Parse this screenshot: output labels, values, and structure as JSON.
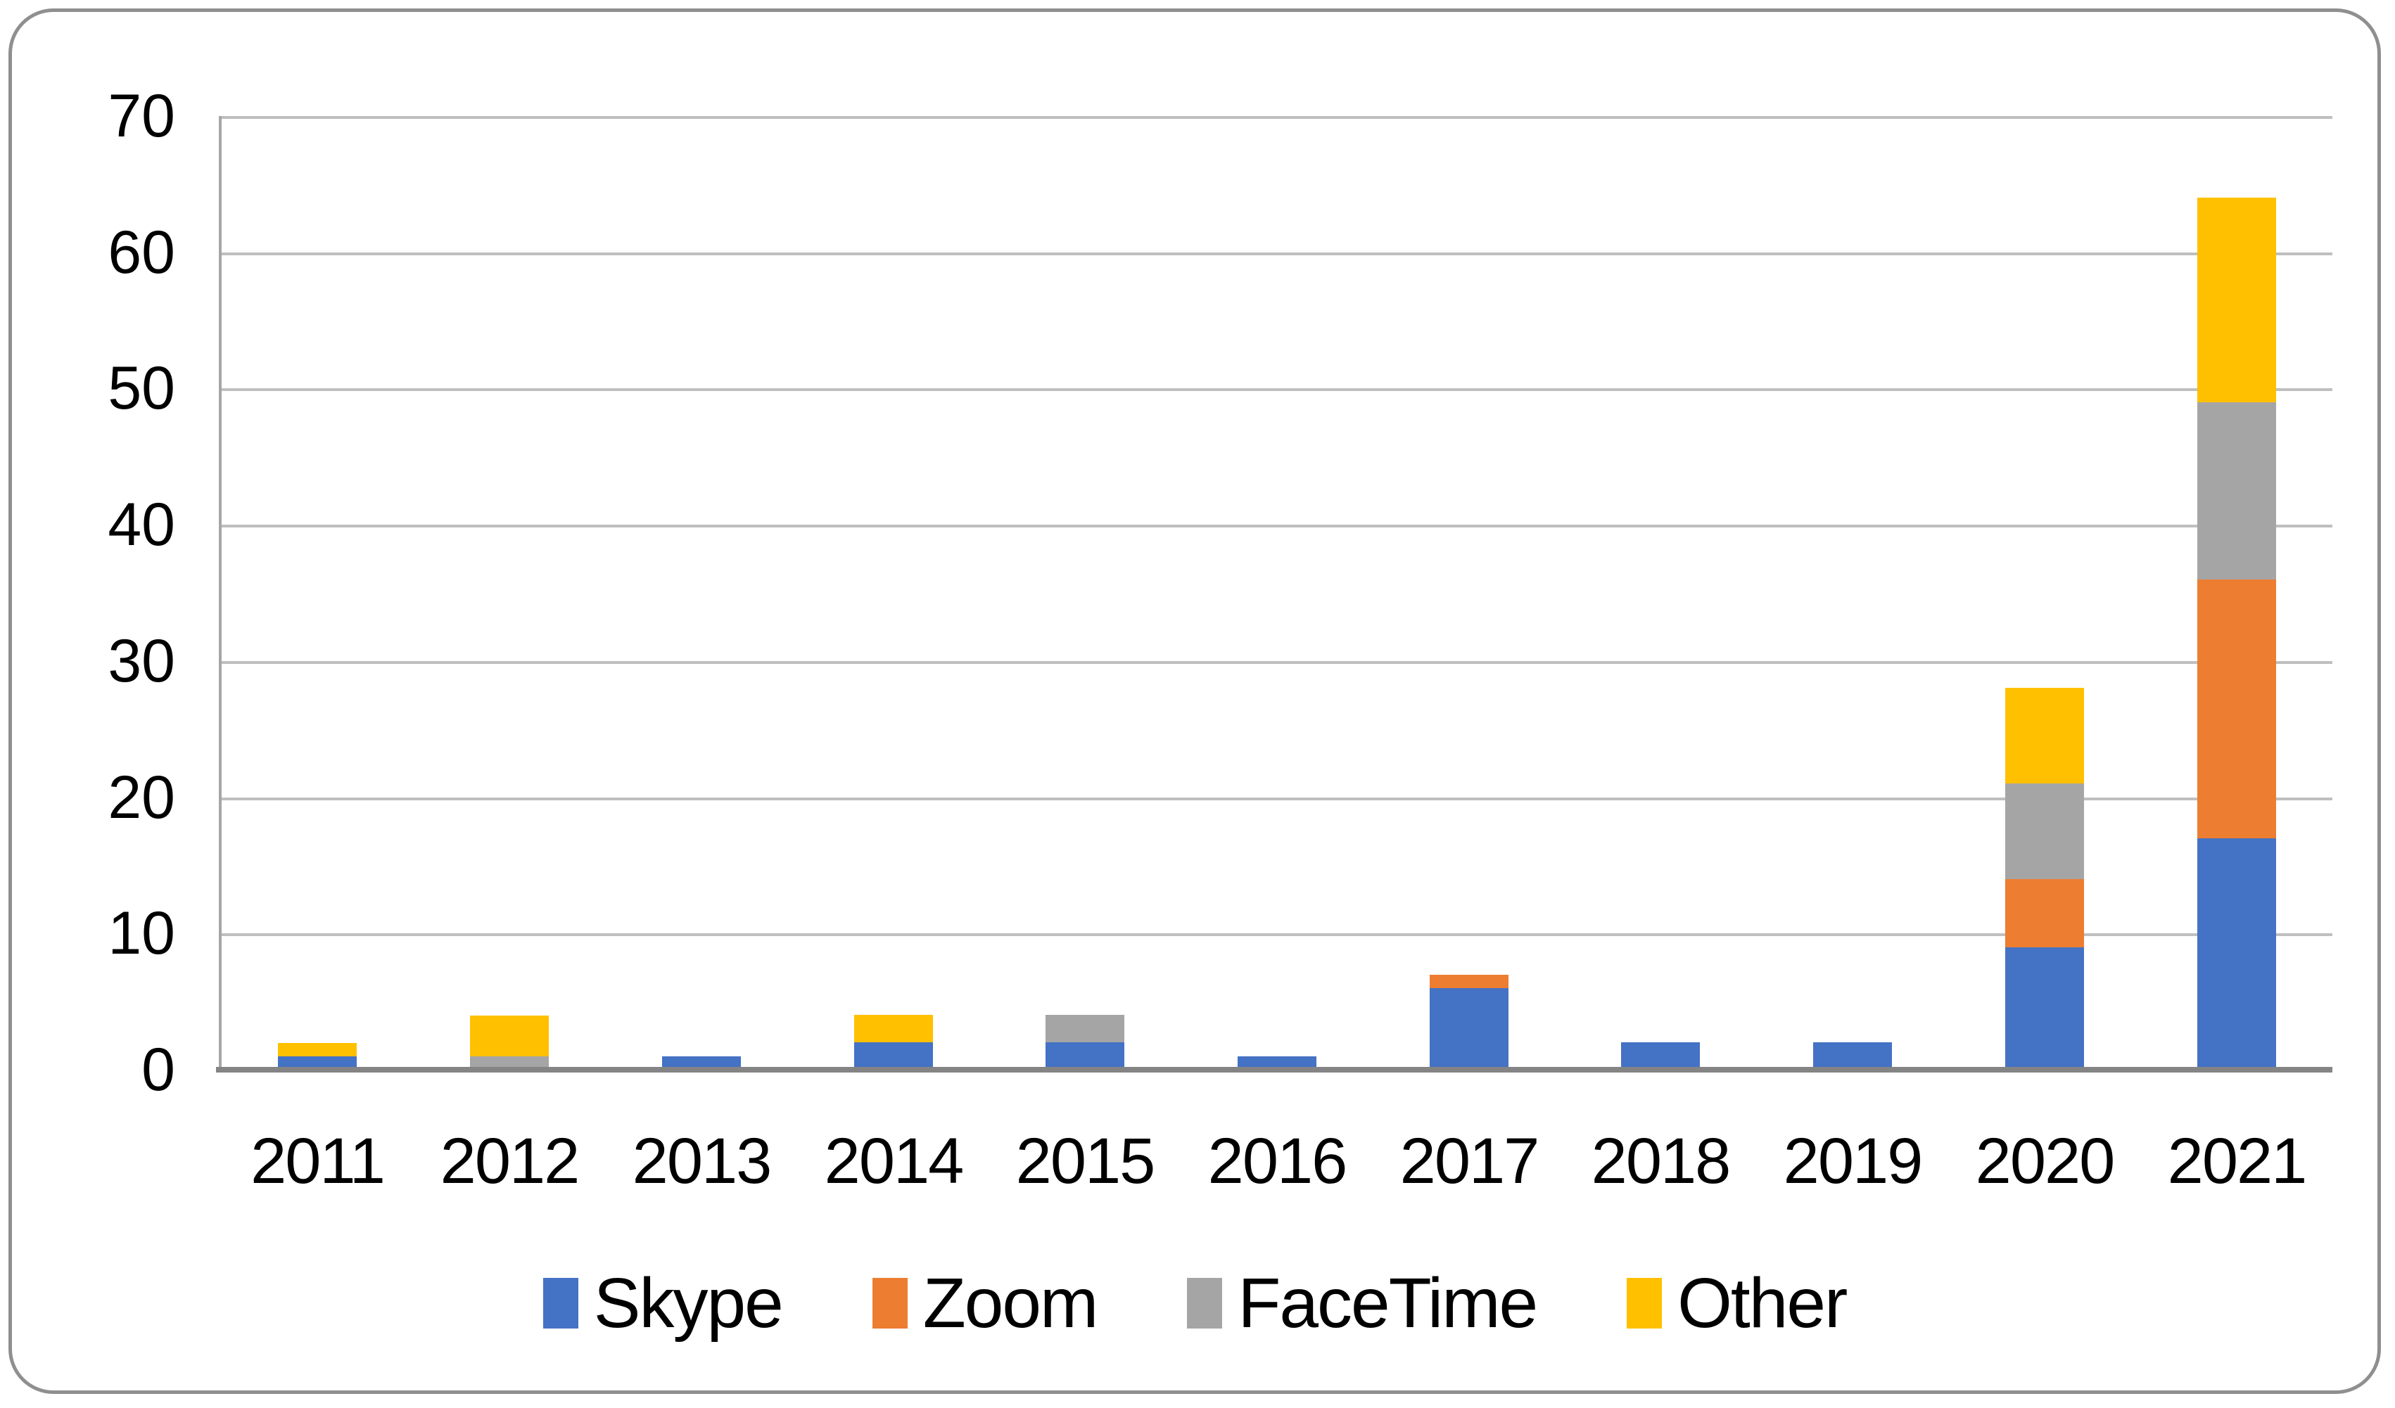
{
  "chart_data": {
    "type": "bar",
    "stacked": true,
    "title": "",
    "xlabel": "",
    "ylabel": "",
    "categories": [
      "2011",
      "2012",
      "2013",
      "2014",
      "2015",
      "2016",
      "2017",
      "2018",
      "2019",
      "2020",
      "2021"
    ],
    "series": [
      {
        "name": "Skype",
        "color": "#4472C4",
        "values": [
          1,
          0,
          1,
          2,
          2,
          1,
          6,
          2,
          2,
          9,
          17
        ]
      },
      {
        "name": "Zoom",
        "color": "#ED7D31",
        "values": [
          0,
          0,
          0,
          0,
          0,
          0,
          1,
          0,
          0,
          5,
          19
        ]
      },
      {
        "name": "FaceTime",
        "color": "#A5A5A5",
        "values": [
          0,
          1,
          0,
          0,
          2,
          0,
          0,
          0,
          0,
          7,
          13
        ]
      },
      {
        "name": "Other",
        "color": "#FFC000",
        "values": [
          1,
          3,
          0,
          2,
          0,
          0,
          0,
          0,
          0,
          7,
          15
        ]
      }
    ],
    "totals": [
      2,
      4,
      1,
      4,
      4,
      1,
      7,
      2,
      2,
      28,
      64
    ],
    "ylim": [
      0,
      70
    ],
    "ytick_step": 10,
    "ytick_labels": [
      "0",
      "10",
      "20",
      "30",
      "40",
      "50",
      "60",
      "70"
    ],
    "grid": true,
    "legend_position": "bottom",
    "bar_width_ratio": 0.41
  },
  "style": {
    "gridline_color": "#BFBFBF",
    "x_axis_color": "#848484",
    "y_axis_color": "#A6A6A6",
    "figure_border_color": "#8F8F8F",
    "text_color": "#000000",
    "background": "#FFFFFF"
  }
}
